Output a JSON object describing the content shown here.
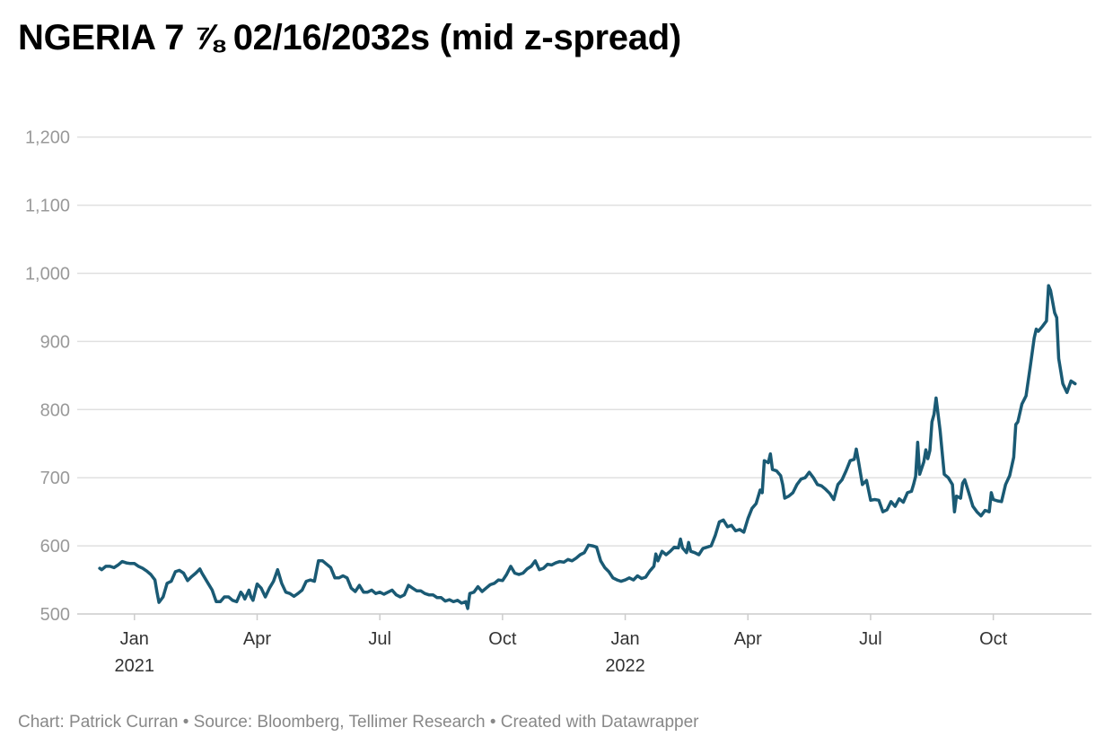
{
  "chart_data": {
    "type": "line",
    "title": "NGERIA 7 ⅞ 02/16/2032s (mid z-spread)",
    "ylabel": "",
    "xlabel": "",
    "ylim": [
      500,
      1280
    ],
    "y_ticks": [
      500,
      600,
      700,
      800,
      900,
      1000,
      1100,
      1200
    ],
    "y_tick_labels": [
      "500",
      "600",
      "700",
      "800",
      "900",
      "1,000",
      "1,100",
      "1,200"
    ],
    "x_range_months": [
      -1.4,
      23.4
    ],
    "x_ticks": [
      {
        "month": 0,
        "label": "Jan",
        "year": "2021"
      },
      {
        "month": 3,
        "label": "Apr",
        "year": ""
      },
      {
        "month": 6,
        "label": "Jul",
        "year": ""
      },
      {
        "month": 9,
        "label": "Oct",
        "year": ""
      },
      {
        "month": 12,
        "label": "Jan",
        "year": "2022"
      },
      {
        "month": 15,
        "label": "Apr",
        "year": ""
      },
      {
        "month": 18,
        "label": "Jul",
        "year": ""
      },
      {
        "month": 21,
        "label": "Oct",
        "year": ""
      }
    ],
    "grid": true,
    "series": [
      {
        "name": "mid z-spread",
        "color": "#1a5a74",
        "x_unit": "months since Jan 2021",
        "points": [
          [
            -0.85,
            567
          ],
          [
            -0.8,
            565
          ],
          [
            -0.7,
            570
          ],
          [
            -0.6,
            570
          ],
          [
            -0.5,
            568
          ],
          [
            -0.4,
            572
          ],
          [
            -0.3,
            577
          ],
          [
            -0.2,
            575
          ],
          [
            -0.1,
            574
          ],
          [
            0.0,
            574
          ],
          [
            0.1,
            570
          ],
          [
            0.2,
            567
          ],
          [
            0.3,
            563
          ],
          [
            0.4,
            558
          ],
          [
            0.5,
            550
          ],
          [
            0.55,
            532
          ],
          [
            0.6,
            517
          ],
          [
            0.7,
            525
          ],
          [
            0.8,
            545
          ],
          [
            0.9,
            548
          ],
          [
            1.0,
            562
          ],
          [
            1.1,
            564
          ],
          [
            1.2,
            560
          ],
          [
            1.3,
            549
          ],
          [
            1.4,
            555
          ],
          [
            1.5,
            560
          ],
          [
            1.6,
            566
          ],
          [
            1.65,
            560
          ],
          [
            1.7,
            555
          ],
          [
            1.8,
            545
          ],
          [
            1.9,
            535
          ],
          [
            2.0,
            518
          ],
          [
            2.1,
            518
          ],
          [
            2.2,
            525
          ],
          [
            2.3,
            525
          ],
          [
            2.4,
            520
          ],
          [
            2.5,
            518
          ],
          [
            2.6,
            532
          ],
          [
            2.65,
            528
          ],
          [
            2.7,
            522
          ],
          [
            2.8,
            535
          ],
          [
            2.85,
            525
          ],
          [
            2.9,
            520
          ],
          [
            3.0,
            544
          ],
          [
            3.1,
            538
          ],
          [
            3.2,
            525
          ],
          [
            3.3,
            538
          ],
          [
            3.4,
            548
          ],
          [
            3.5,
            565
          ],
          [
            3.6,
            545
          ],
          [
            3.7,
            532
          ],
          [
            3.8,
            530
          ],
          [
            3.9,
            526
          ],
          [
            4.0,
            530
          ],
          [
            4.1,
            535
          ],
          [
            4.2,
            548
          ],
          [
            4.3,
            550
          ],
          [
            4.4,
            548
          ],
          [
            4.5,
            578
          ],
          [
            4.6,
            578
          ],
          [
            4.7,
            573
          ],
          [
            4.8,
            568
          ],
          [
            4.9,
            553
          ],
          [
            5.0,
            553
          ],
          [
            5.1,
            556
          ],
          [
            5.2,
            553
          ],
          [
            5.3,
            538
          ],
          [
            5.4,
            533
          ],
          [
            5.5,
            542
          ],
          [
            5.6,
            532
          ],
          [
            5.7,
            532
          ],
          [
            5.8,
            535
          ],
          [
            5.9,
            530
          ],
          [
            6.0,
            532
          ],
          [
            6.1,
            529
          ],
          [
            6.2,
            532
          ],
          [
            6.3,
            535
          ],
          [
            6.4,
            528
          ],
          [
            6.5,
            525
          ],
          [
            6.6,
            528
          ],
          [
            6.7,
            542
          ],
          [
            6.8,
            538
          ],
          [
            6.9,
            534
          ],
          [
            7.0,
            534
          ],
          [
            7.1,
            530
          ],
          [
            7.2,
            528
          ],
          [
            7.3,
            528
          ],
          [
            7.4,
            524
          ],
          [
            7.5,
            524
          ],
          [
            7.6,
            519
          ],
          [
            7.7,
            521
          ],
          [
            7.8,
            518
          ],
          [
            7.9,
            520
          ],
          [
            8.0,
            516
          ],
          [
            8.1,
            518
          ],
          [
            8.15,
            508
          ],
          [
            8.2,
            530
          ],
          [
            8.3,
            532
          ],
          [
            8.4,
            540
          ],
          [
            8.5,
            533
          ],
          [
            8.6,
            538
          ],
          [
            8.7,
            543
          ],
          [
            8.8,
            545
          ],
          [
            8.9,
            550
          ],
          [
            9.0,
            549
          ],
          [
            9.1,
            558
          ],
          [
            9.2,
            570
          ],
          [
            9.3,
            560
          ],
          [
            9.4,
            558
          ],
          [
            9.5,
            560
          ],
          [
            9.6,
            566
          ],
          [
            9.7,
            570
          ],
          [
            9.8,
            578
          ],
          [
            9.9,
            565
          ],
          [
            10.0,
            567
          ],
          [
            10.1,
            573
          ],
          [
            10.2,
            572
          ],
          [
            10.3,
            575
          ],
          [
            10.4,
            577
          ],
          [
            10.5,
            576
          ],
          [
            10.6,
            580
          ],
          [
            10.7,
            578
          ],
          [
            10.8,
            582
          ],
          [
            10.9,
            587
          ],
          [
            11.0,
            590
          ],
          [
            11.1,
            601
          ],
          [
            11.2,
            600
          ],
          [
            11.3,
            598
          ],
          [
            11.4,
            578
          ],
          [
            11.5,
            568
          ],
          [
            11.6,
            562
          ],
          [
            11.7,
            553
          ],
          [
            11.8,
            550
          ],
          [
            11.9,
            548
          ],
          [
            12.0,
            550
          ],
          [
            12.1,
            553
          ],
          [
            12.2,
            550
          ],
          [
            12.3,
            556
          ],
          [
            12.4,
            552
          ],
          [
            12.5,
            554
          ],
          [
            12.6,
            563
          ],
          [
            12.7,
            570
          ],
          [
            12.75,
            588
          ],
          [
            12.8,
            578
          ],
          [
            12.9,
            592
          ],
          [
            13.0,
            587
          ],
          [
            13.1,
            592
          ],
          [
            13.2,
            598
          ],
          [
            13.3,
            597
          ],
          [
            13.35,
            610
          ],
          [
            13.4,
            597
          ],
          [
            13.5,
            590
          ],
          [
            13.55,
            605
          ],
          [
            13.6,
            592
          ],
          [
            13.7,
            590
          ],
          [
            13.8,
            587
          ],
          [
            13.9,
            596
          ],
          [
            14.0,
            598
          ],
          [
            14.1,
            600
          ],
          [
            14.2,
            615
          ],
          [
            14.3,
            635
          ],
          [
            14.4,
            638
          ],
          [
            14.5,
            628
          ],
          [
            14.6,
            630
          ],
          [
            14.7,
            622
          ],
          [
            14.8,
            624
          ],
          [
            14.9,
            620
          ],
          [
            15.0,
            640
          ],
          [
            15.1,
            655
          ],
          [
            15.2,
            662
          ],
          [
            15.3,
            682
          ],
          [
            15.35,
            678
          ],
          [
            15.4,
            725
          ],
          [
            15.5,
            722
          ],
          [
            15.55,
            735
          ],
          [
            15.6,
            712
          ],
          [
            15.7,
            710
          ],
          [
            15.8,
            703
          ],
          [
            15.85,
            690
          ],
          [
            15.9,
            670
          ],
          [
            16.0,
            673
          ],
          [
            16.1,
            678
          ],
          [
            16.2,
            690
          ],
          [
            16.3,
            698
          ],
          [
            16.4,
            700
          ],
          [
            16.5,
            708
          ],
          [
            16.6,
            700
          ],
          [
            16.7,
            690
          ],
          [
            16.8,
            688
          ],
          [
            16.9,
            683
          ],
          [
            17.0,
            677
          ],
          [
            17.1,
            668
          ],
          [
            17.2,
            690
          ],
          [
            17.3,
            697
          ],
          [
            17.4,
            710
          ],
          [
            17.5,
            725
          ],
          [
            17.6,
            727
          ],
          [
            17.65,
            742
          ],
          [
            17.7,
            725
          ],
          [
            17.8,
            690
          ],
          [
            17.9,
            696
          ],
          [
            18.0,
            667
          ],
          [
            18.1,
            668
          ],
          [
            18.2,
            667
          ],
          [
            18.3,
            650
          ],
          [
            18.4,
            653
          ],
          [
            18.5,
            665
          ],
          [
            18.6,
            658
          ],
          [
            18.7,
            669
          ],
          [
            18.8,
            664
          ],
          [
            18.9,
            678
          ],
          [
            19.0,
            680
          ],
          [
            19.05,
            690
          ],
          [
            19.1,
            702
          ],
          [
            19.15,
            752
          ],
          [
            19.2,
            705
          ],
          [
            19.3,
            723
          ],
          [
            19.35,
            741
          ],
          [
            19.4,
            728
          ],
          [
            19.45,
            740
          ],
          [
            19.5,
            782
          ],
          [
            19.55,
            793
          ],
          [
            19.6,
            817
          ],
          [
            19.7,
            769
          ],
          [
            19.8,
            705
          ],
          [
            19.9,
            700
          ],
          [
            20.0,
            690
          ],
          [
            20.05,
            650
          ],
          [
            20.1,
            673
          ],
          [
            20.2,
            670
          ],
          [
            20.25,
            692
          ],
          [
            20.3,
            697
          ],
          [
            20.4,
            678
          ],
          [
            20.5,
            658
          ],
          [
            20.6,
            650
          ],
          [
            20.7,
            644
          ],
          [
            20.8,
            652
          ],
          [
            20.9,
            650
          ],
          [
            20.95,
            678
          ],
          [
            21.0,
            668
          ],
          [
            21.1,
            666
          ],
          [
            21.2,
            665
          ],
          [
            21.3,
            690
          ],
          [
            21.4,
            703
          ],
          [
            21.5,
            730
          ],
          [
            21.55,
            778
          ],
          [
            21.6,
            782
          ],
          [
            21.7,
            808
          ],
          [
            21.8,
            820
          ],
          [
            21.9,
            862
          ],
          [
            22.0,
            905
          ],
          [
            22.05,
            918
          ],
          [
            22.1,
            915
          ],
          [
            22.2,
            922
          ],
          [
            22.3,
            930
          ],
          [
            22.35,
            982
          ],
          [
            22.4,
            975
          ],
          [
            22.5,
            942
          ],
          [
            22.55,
            935
          ],
          [
            22.6,
            875
          ],
          [
            22.7,
            838
          ],
          [
            22.8,
            825
          ],
          [
            22.9,
            842
          ],
          [
            23.0,
            838
          ]
        ]
      }
    ]
  },
  "footer": {
    "credit": "Chart: Patrick Curran • Source: Bloomberg, Tellimer Research • Created with Datawrapper"
  },
  "colors": {
    "line": "#1a5a74",
    "grid": "#e0e0e0",
    "axis": "#cccccc",
    "y_label": "#999999",
    "x_label": "#333333",
    "footer": "#888888"
  }
}
